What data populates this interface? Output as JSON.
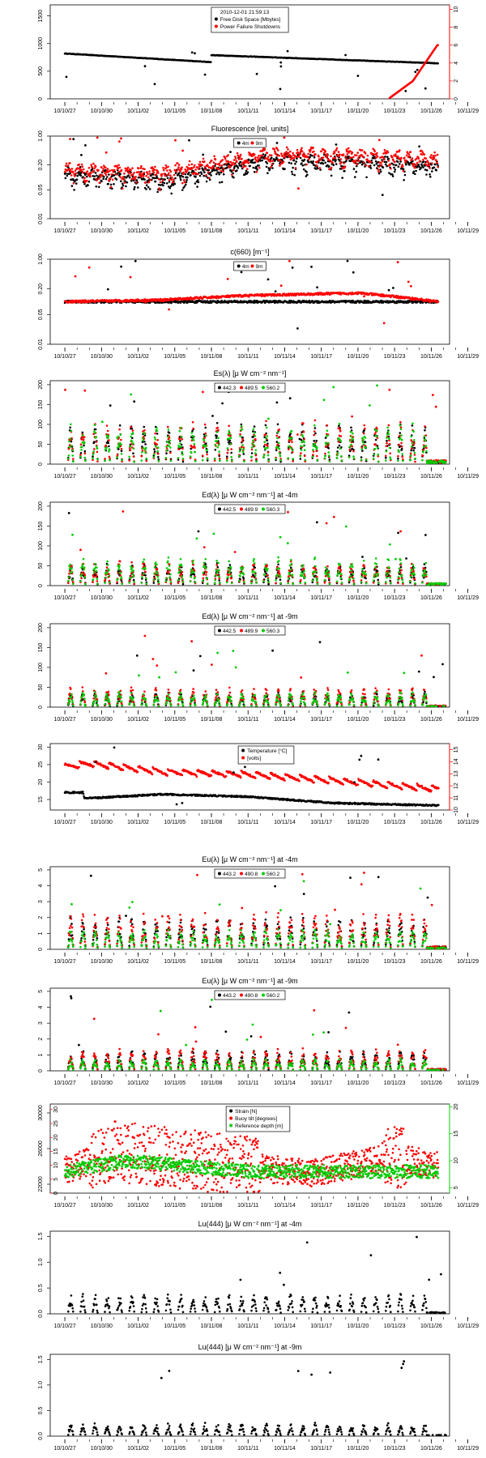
{
  "figure": {
    "x_tick_labels": [
      "10/10/27",
      "10/10/30",
      "10/11/02",
      "10/11/05",
      "10/11/08",
      "10/11/11",
      "10/11/14",
      "10/11/17",
      "10/11/20",
      "10/11/23",
      "10/11/26",
      "10/11/29"
    ],
    "colors": {
      "black": "#000000",
      "red": "#ff0000",
      "green": "#00cc00"
    }
  },
  "chart_data": [
    {
      "type": "scatter",
      "title": "",
      "legend": [
        "2010-12-01 21:59:13",
        "Free Disk Space [Mbytes]",
        "Power Failure Shutdowns"
      ],
      "y_left_ticks": [
        "0",
        "500",
        "1000",
        "1500"
      ],
      "y_left_range": [
        0,
        1700
      ],
      "y_right_ticks": [
        "0",
        "2",
        "4",
        "6",
        "8",
        "10"
      ],
      "y_right_range": [
        0,
        10.5
      ],
      "series": [
        {
          "name": "Free Disk Space [Mbytes]",
          "color": "black",
          "axis": "left",
          "x": [
            0,
            12,
            12.1,
            30.5
          ],
          "y": [
            820,
            660,
            790,
            640
          ]
        },
        {
          "name": "Power Failure Shutdowns",
          "color": "red",
          "axis": "right",
          "x": [
            0,
            26.5,
            27.5,
            28.5,
            29.5,
            30.5
          ],
          "y": [
            0,
            0,
            1,
            2,
            4,
            6
          ]
        }
      ]
    },
    {
      "type": "scatter",
      "title": "Fluorescence  [rel. units]",
      "legend": [
        "4m",
        "9m"
      ],
      "y_left_ticks": [
        "0.01",
        "0.05",
        "0.20",
        "1.00"
      ],
      "y_left_range": [
        0.01,
        1.0
      ],
      "log": true,
      "series": [
        {
          "name": "4m",
          "color": "black",
          "x": [
            0,
            8,
            12,
            17,
            25,
            30.5
          ],
          "y": [
            0.12,
            0.08,
            0.14,
            0.25,
            0.22,
            0.18
          ]
        },
        {
          "name": "9m",
          "color": "red",
          "x": [
            0,
            8,
            12,
            17,
            25,
            30.5
          ],
          "y": [
            0.15,
            0.12,
            0.2,
            0.35,
            0.32,
            0.28
          ]
        }
      ]
    },
    {
      "type": "scatter",
      "title": "c(660)  [m⁻¹]",
      "legend": [
        "4m",
        "9m"
      ],
      "y_left_ticks": [
        "0.01",
        "0.05",
        "0.20",
        "1.00"
      ],
      "y_left_range": [
        0.01,
        1.0
      ],
      "log": true,
      "series": [
        {
          "name": "4m",
          "color": "black",
          "x": [
            0,
            30.5
          ],
          "y": [
            0.1,
            0.1
          ]
        },
        {
          "name": "9m",
          "color": "red",
          "x": [
            0,
            8,
            15,
            24,
            30.5
          ],
          "y": [
            0.1,
            0.11,
            0.14,
            0.16,
            0.1
          ]
        }
      ]
    },
    {
      "type": "scatter",
      "title": "Es(λ)  [μ W cm⁻² nm⁻¹]",
      "legend": [
        "442.3",
        "489.5",
        "560.2"
      ],
      "y_left_ticks": [
        "0",
        "50",
        "100",
        "150",
        "200"
      ],
      "y_left_range": [
        0,
        210
      ],
      "series": [
        {
          "name": "442.3",
          "color": "black",
          "peak": 80
        },
        {
          "name": "489.5",
          "color": "red",
          "peak": 85
        },
        {
          "name": "560.2",
          "color": "green",
          "peak": 80
        }
      ]
    },
    {
      "type": "scatter",
      "title": "Ed(λ)  [μ W cm⁻² nm⁻¹] at -4m",
      "legend": [
        "442.5",
        "489.9",
        "560.3"
      ],
      "y_left_ticks": [
        "0",
        "50",
        "100",
        "150",
        "200"
      ],
      "y_left_range": [
        0,
        210
      ],
      "series": [
        {
          "name": "442.5",
          "color": "black",
          "peak": 45
        },
        {
          "name": "489.9",
          "color": "red",
          "peak": 50
        },
        {
          "name": "560.3",
          "color": "green",
          "peak": 55
        }
      ]
    },
    {
      "type": "scatter",
      "title": "Ed(λ)  [μ W cm⁻² nm⁻¹] at -9m",
      "legend": [
        "442.5",
        "489.9",
        "560.3"
      ],
      "y_left_ticks": [
        "0",
        "50",
        "100",
        "150",
        "200"
      ],
      "y_left_range": [
        0,
        210
      ],
      "series": [
        {
          "name": "442.5",
          "color": "black",
          "peak": 30
        },
        {
          "name": "489.9",
          "color": "red",
          "peak": 40
        },
        {
          "name": "560.3",
          "color": "green",
          "peak": 30
        }
      ]
    },
    {
      "type": "scatter",
      "title": "",
      "legend": [
        "Temperature [°C]",
        "[volts]"
      ],
      "y_left_ticks": [
        "15",
        "20",
        "25",
        "30"
      ],
      "y_left_range": [
        12,
        31
      ],
      "y_right_ticks": [
        "10",
        "11",
        "12",
        "13",
        "14",
        "15"
      ],
      "y_right_range": [
        10,
        15.5
      ],
      "series": [
        {
          "name": "Temperature [°C]",
          "color": "black",
          "axis": "left",
          "x": [
            0,
            1.5,
            1.6,
            8,
            15,
            22,
            30.5
          ],
          "y": [
            17,
            17,
            15.3,
            16.5,
            15.8,
            14,
            13.3
          ]
        },
        {
          "name": "[volts]",
          "color": "red",
          "axis": "right",
          "x": [
            0,
            2,
            8,
            15,
            22,
            30.5
          ],
          "y": [
            13.3,
            13.6,
            12.9,
            12.7,
            12.2,
            11.5
          ]
        }
      ]
    },
    {
      "type": "scatter",
      "title": "Eu(λ)  [μ W cm⁻² nm⁻¹] at -4m",
      "legend": [
        "443.2",
        "490.8",
        "560.2"
      ],
      "y_left_ticks": [
        "0",
        "1",
        "2",
        "3",
        "4",
        "5"
      ],
      "y_left_range": [
        0,
        5.2
      ],
      "series": [
        {
          "name": "443.2",
          "color": "black",
          "peak": 1.6
        },
        {
          "name": "490.8",
          "color": "red",
          "peak": 1.8
        },
        {
          "name": "560.2",
          "color": "green",
          "peak": 1.0
        }
      ]
    },
    {
      "type": "scatter",
      "title": "Eu(λ)  [μ W cm⁻² nm⁻¹] at -9m",
      "legend": [
        "443.2",
        "490.8",
        "560.2"
      ],
      "y_left_ticks": [
        "0",
        "1",
        "2",
        "3",
        "4",
        "5"
      ],
      "y_left_range": [
        0,
        5.2
      ],
      "series": [
        {
          "name": "443.2",
          "color": "black",
          "peak": 1.0
        },
        {
          "name": "490.8",
          "color": "red",
          "peak": 1.1
        },
        {
          "name": "560.2",
          "color": "green",
          "peak": 0.6
        }
      ]
    },
    {
      "type": "scatter",
      "title": "",
      "legend": [
        "Strain [N]",
        "Buoy tilt [degrees]",
        "Reference depth [m]"
      ],
      "y_left_ticks": [
        "22000",
        "26000",
        "30000"
      ],
      "y_left_range": [
        21000,
        31000
      ],
      "y_left_inner_ticks": [
        "0",
        "5",
        "10",
        "15",
        "20",
        "25",
        "30"
      ],
      "y_right_ticks": [
        "5",
        "10",
        "15",
        "20"
      ],
      "y_right_range": [
        4,
        20.5
      ],
      "series": [
        {
          "name": "Strain [N]",
          "color": "black",
          "axis": "left"
        },
        {
          "name": "Buoy tilt [degrees]",
          "color": "red",
          "axis": "inner",
          "x": [
            0,
            4,
            10,
            20,
            27,
            30.5
          ],
          "y": [
            8,
            15,
            12,
            7,
            13,
            10
          ]
        },
        {
          "name": "Reference depth [m]",
          "color": "green",
          "axis": "right",
          "x": [
            0,
            5,
            15,
            25,
            30.5
          ],
          "y": [
            8,
            10,
            8,
            8,
            8
          ]
        }
      ]
    },
    {
      "type": "scatter",
      "title": "Lu(444)  [μ W cm⁻² nm⁻¹] at -4m",
      "y_left_ticks": [
        "0.0",
        "0.5",
        "1.0",
        "1.5"
      ],
      "y_left_range": [
        0,
        1.6
      ],
      "series": [
        {
          "name": "Lu(444) -4m",
          "color": "black",
          "peak": 0.3
        }
      ]
    },
    {
      "type": "scatter",
      "title": "Lu(444)  [μ W cm⁻² nm⁻¹] at -9m",
      "y_left_ticks": [
        "0.0",
        "0.5",
        "1.0",
        "1.5"
      ],
      "y_left_range": [
        0,
        1.6
      ],
      "series": [
        {
          "name": "Lu(444) -9m",
          "color": "black",
          "peak": 0.2
        }
      ]
    }
  ]
}
